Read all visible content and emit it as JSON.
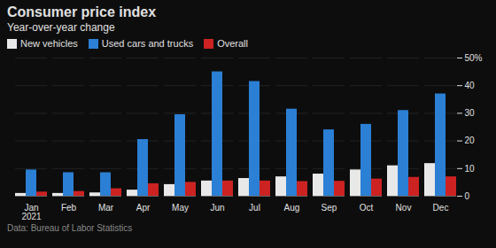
{
  "chart_data": {
    "type": "bar",
    "title": "Consumer price index",
    "subtitle": "Year-over-year change",
    "source": "Data: Bureau of Labor Statistics",
    "categories": [
      "Jan\n2021",
      "Feb",
      "Mar",
      "Apr",
      "May",
      "Jun",
      "Jul",
      "Aug",
      "Sep",
      "Oct",
      "Nov",
      "Dec"
    ],
    "series": [
      {
        "name": "New vehicles",
        "color": "#e8e8e8",
        "values": [
          1.0,
          1.0,
          1.2,
          2.2,
          4.2,
          5.5,
          6.4,
          7.0,
          8.0,
          9.5,
          11.0,
          11.8
        ]
      },
      {
        "name": "Used cars and trucks",
        "color": "#2b7fd4",
        "values": [
          9.5,
          8.5,
          8.5,
          20.5,
          29.5,
          45.0,
          41.5,
          31.5,
          24.0,
          26.0,
          31.0,
          37.0
        ]
      },
      {
        "name": "Overall",
        "color": "#cc2222",
        "values": [
          1.5,
          1.7,
          2.7,
          4.5,
          5.0,
          5.5,
          5.5,
          5.3,
          5.4,
          6.2,
          6.8,
          7.0
        ]
      }
    ],
    "ylim": [
      0,
      50
    ],
    "yticks": [
      0,
      10,
      20,
      30,
      40,
      {
        "value": 50,
        "label": "50%"
      }
    ],
    "grid": true,
    "legend": "upper left"
  }
}
